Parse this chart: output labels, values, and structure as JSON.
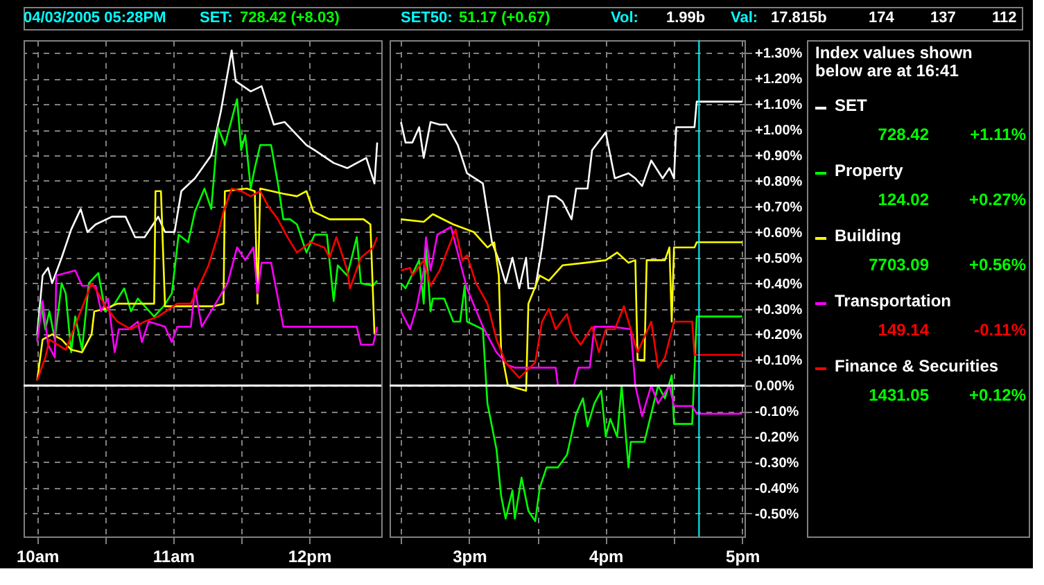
{
  "chart_data": [
    {
      "type": "line",
      "xlim": [
        9.9,
        12.53
      ],
      "ylim": [
        -0.59,
        1.35
      ],
      "xticks": [
        {
          "value": 10,
          "label": "10am"
        },
        {
          "value": 10.5,
          "label": null
        },
        {
          "value": 11,
          "label": "11am"
        },
        {
          "value": 11.5,
          "label": null
        },
        {
          "value": 12,
          "label": "12pm"
        }
      ],
      "yticks": [
        {
          "value": -0.5,
          "label": null
        },
        {
          "value": -0.4,
          "label": null
        },
        {
          "value": -0.3,
          "label": null
        },
        {
          "value": -0.2,
          "label": null
        },
        {
          "value": -0.1,
          "label": null
        },
        {
          "value": 0,
          "label": null
        },
        {
          "value": 0.1,
          "label": null
        },
        {
          "value": 0.2,
          "label": null
        },
        {
          "value": 0.3,
          "label": null
        },
        {
          "value": 0.4,
          "label": null
        },
        {
          "value": 0.5,
          "label": null
        },
        {
          "value": 0.6,
          "label": null
        },
        {
          "value": 0.7,
          "label": null
        },
        {
          "value": 0.8,
          "label": null
        },
        {
          "value": 0.9,
          "label": null
        },
        {
          "value": 1.0,
          "label": null
        },
        {
          "value": 1.1,
          "label": null
        },
        {
          "value": 1.2,
          "label": null
        },
        {
          "value": 1.3,
          "label": null
        }
      ],
      "tick_labels": "x",
      "grid": true,
      "line_style": "solid",
      "marker": "none",
      "ref_lines": [
        {
          "axis": "y",
          "value": 0,
          "color": "#ffffff"
        }
      ],
      "annotations": [
        "04/03/2005 05:28PM",
        "SET:",
        "728.42 (+8.03)",
        "SET50:",
        "51.17 (+0.67)",
        "Vol:",
        "1.99b",
        "Val:",
        "17.815b",
        "174",
        "137",
        "112"
      ],
      "series": [
        {
          "color": "#ffffff",
          "x": [
            10.0,
            10.04,
            10.08,
            10.11,
            10.18,
            10.25,
            10.32,
            10.37,
            10.43,
            10.55,
            10.65,
            10.72,
            10.79,
            10.89,
            10.94,
            11.01,
            11.06,
            11.16,
            11.28,
            11.35,
            11.43,
            11.46,
            11.57,
            11.65,
            11.74,
            11.82,
            11.98,
            12.04,
            12.18,
            12.28,
            12.42,
            12.48,
            12.5
          ],
          "values": [
            0.2,
            0.43,
            0.46,
            0.4,
            0.5,
            0.61,
            0.69,
            0.6,
            0.63,
            0.66,
            0.66,
            0.58,
            0.58,
            0.66,
            0.6,
            0.6,
            0.76,
            0.81,
            0.9,
            1.07,
            1.31,
            1.19,
            1.15,
            1.17,
            1.02,
            1.03,
            0.94,
            0.92,
            0.87,
            0.85,
            0.89,
            0.79,
            0.95
          ]
        },
        {
          "color": "#00ff00",
          "x": [
            10.0,
            10.03,
            10.06,
            10.09,
            10.13,
            10.18,
            10.21,
            10.25,
            10.28,
            10.33,
            10.38,
            10.45,
            10.5,
            10.57,
            10.64,
            10.69,
            10.74,
            10.86,
            10.93,
            10.99,
            11.04,
            11.11,
            11.16,
            11.23,
            11.28,
            11.33,
            11.38,
            11.47,
            11.5,
            11.53,
            11.57,
            11.6,
            11.64,
            11.72,
            11.77,
            11.81,
            11.86,
            11.91,
            11.98,
            12.04,
            12.13,
            12.18,
            12.21,
            12.28,
            12.35,
            12.38,
            12.47,
            12.5
          ],
          "values": [
            0.18,
            0.32,
            0.22,
            0.29,
            0.18,
            0.4,
            0.36,
            0.13,
            0.27,
            0.14,
            0.4,
            0.44,
            0.29,
            0.32,
            0.38,
            0.29,
            0.34,
            0.27,
            0.31,
            0.36,
            0.59,
            0.56,
            0.68,
            0.77,
            0.69,
            1.01,
            0.94,
            1.12,
            0.92,
            0.98,
            0.77,
            0.85,
            0.94,
            0.94,
            0.79,
            0.65,
            0.65,
            0.63,
            0.52,
            0.59,
            0.59,
            0.33,
            0.47,
            0.43,
            0.58,
            0.4,
            0.39,
            0.41
          ]
        },
        {
          "color": "#ffff00",
          "x": [
            10.0,
            10.04,
            10.11,
            10.18,
            10.25,
            10.33,
            10.4,
            10.42,
            10.5,
            10.59,
            10.79,
            10.86,
            10.87,
            10.91,
            10.94,
            11.13,
            11.3,
            11.37,
            11.38,
            11.54,
            11.6,
            11.62,
            11.64,
            11.81,
            11.91,
            11.98,
            12.03,
            12.15,
            12.4,
            12.45,
            12.48
          ],
          "values": [
            0.02,
            0.18,
            0.2,
            0.18,
            0.14,
            0.13,
            0.2,
            0.29,
            0.3,
            0.32,
            0.32,
            0.32,
            0.76,
            0.76,
            0.31,
            0.31,
            0.31,
            0.32,
            0.76,
            0.77,
            0.76,
            0.32,
            0.77,
            0.75,
            0.74,
            0.76,
            0.68,
            0.65,
            0.65,
            0.63,
            0.2
          ]
        },
        {
          "color": "#ff00ff",
          "x": [
            10.0,
            10.04,
            10.08,
            10.13,
            10.14,
            10.28,
            10.33,
            10.43,
            10.47,
            10.52,
            10.57,
            10.6,
            10.67,
            10.74,
            10.77,
            10.82,
            10.94,
            10.99,
            11.03,
            11.13,
            11.16,
            11.21,
            11.3,
            11.4,
            11.47,
            11.53,
            11.59,
            11.62,
            11.65,
            11.72,
            11.81,
            12.35,
            12.38,
            12.47,
            12.5
          ],
          "values": [
            0.17,
            0.33,
            0.16,
            0.11,
            0.43,
            0.45,
            0.39,
            0.39,
            0.29,
            0.34,
            0.13,
            0.22,
            0.22,
            0.25,
            0.17,
            0.25,
            0.23,
            0.17,
            0.23,
            0.23,
            0.38,
            0.23,
            0.31,
            0.4,
            0.54,
            0.49,
            0.54,
            0.36,
            0.48,
            0.48,
            0.23,
            0.23,
            0.16,
            0.16,
            0.23
          ]
        },
        {
          "color": "#ff0000",
          "x": [
            10.0,
            10.06,
            10.09,
            10.21,
            10.32,
            10.4,
            10.45,
            10.5,
            10.59,
            10.69,
            10.79,
            10.89,
            11.03,
            11.13,
            11.2,
            11.26,
            11.33,
            11.37,
            11.43,
            11.5,
            11.57,
            11.64,
            11.7,
            11.77,
            11.84,
            11.91,
            12.01,
            12.11,
            12.15,
            12.2,
            12.28,
            12.3,
            12.38,
            12.47,
            12.5
          ],
          "values": [
            0.02,
            0.11,
            0.18,
            0.14,
            0.29,
            0.4,
            0.36,
            0.31,
            0.25,
            0.22,
            0.25,
            0.27,
            0.32,
            0.32,
            0.4,
            0.47,
            0.59,
            0.68,
            0.77,
            0.76,
            0.74,
            0.76,
            0.7,
            0.65,
            0.58,
            0.52,
            0.56,
            0.54,
            0.5,
            0.58,
            0.45,
            0.38,
            0.5,
            0.54,
            0.58
          ]
        }
      ]
    },
    {
      "type": "line",
      "xlim": [
        "2005-03-04T14:25",
        "2005-03-04T17:01"
      ],
      "ylim": [
        -0.59,
        1.35
      ],
      "xticks": [
        {
          "value": "2005-03-04T14:30",
          "label": null
        },
        {
          "value": "2005-03-04T15:00",
          "label": "3pm"
        },
        {
          "value": "2005-03-04T15:30",
          "label": null
        },
        {
          "value": "2005-03-04T16:00",
          "label": "4pm"
        },
        {
          "value": "2005-03-04T16:30",
          "label": null
        },
        {
          "value": "2005-03-04T17:00",
          "label": "5pm"
        }
      ],
      "yticks": [
        {
          "value": -0.5,
          "label": "-0.50%"
        },
        {
          "value": -0.4,
          "label": "-0.40%"
        },
        {
          "value": -0.3,
          "label": "-0.30%"
        },
        {
          "value": -0.2,
          "label": "-0.20%"
        },
        {
          "value": -0.1,
          "label": "-0.10%"
        },
        {
          "value": 0,
          "label": "0.00%"
        },
        {
          "value": 0.1,
          "label": "+0.10%"
        },
        {
          "value": 0.2,
          "label": "+0.20%"
        },
        {
          "value": 0.3,
          "label": "+0.30%"
        },
        {
          "value": 0.4,
          "label": "+0.40%"
        },
        {
          "value": 0.5,
          "label": "+0.50%"
        },
        {
          "value": 0.6,
          "label": "+0.60%"
        },
        {
          "value": 0.7,
          "label": "+0.70%"
        },
        {
          "value": 0.8,
          "label": "+0.80%"
        },
        {
          "value": 0.9,
          "label": "+0.90%"
        },
        {
          "value": 1.0,
          "label": "+1.00%"
        },
        {
          "value": 1.1,
          "label": "+1.10%"
        },
        {
          "value": 1.2,
          "label": "+1.20%"
        },
        {
          "value": 1.3,
          "label": "+1.30%"
        }
      ],
      "grid": true,
      "line_style": "solid",
      "marker": "none",
      "legend": "right",
      "ref_lines": [
        {
          "axis": "y",
          "value": 0,
          "color": "#ffffff"
        },
        {
          "axis": "x",
          "value": "2005-03-04T16:41",
          "color": "#00ffff"
        }
      ],
      "annotations": [
        "Index values shown below are at 16:41",
        "728.42",
        "+1.11%",
        "124.02",
        "+0.27%",
        "7703.09",
        "+0.56%",
        "149.14",
        "-0.11%",
        "1431.05",
        "+0.12%"
      ],
      "series": [
        {
          "name": "SET",
          "color": "#ffffff",
          "x": [
            "2005-03-04T14:30",
            "2005-03-04T14:32",
            "2005-03-04T14:35",
            "2005-03-04T14:38",
            "2005-03-04T14:40",
            "2005-03-04T14:43",
            "2005-03-04T14:47",
            "2005-03-04T14:50",
            "2005-03-04T14:55",
            "2005-03-04T14:59",
            "2005-03-04T15:06",
            "2005-03-04T15:10",
            "2005-03-04T15:13",
            "2005-03-04T15:16",
            "2005-03-04T15:19",
            "2005-03-04T15:22",
            "2005-03-04T15:25",
            "2005-03-04T15:26",
            "2005-03-04T15:29",
            "2005-03-04T15:32",
            "2005-03-04T15:35",
            "2005-03-04T15:38",
            "2005-03-04T15:41",
            "2005-03-04T15:45",
            "2005-03-04T15:47",
            "2005-03-04T15:52",
            "2005-03-04T15:54",
            "2005-03-04T16:00",
            "2005-03-04T16:04",
            "2005-03-04T16:10",
            "2005-03-04T16:13",
            "2005-03-04T16:16",
            "2005-03-04T16:20",
            "2005-03-04T16:25",
            "2005-03-04T16:28",
            "2005-03-04T16:30",
            "2005-03-04T16:31",
            "2005-03-04T16:39",
            "2005-03-04T16:40",
            "2005-03-04T17:00"
          ],
          "values": [
            1.03,
            0.95,
            0.95,
            1.01,
            0.89,
            1.03,
            1.02,
            1.02,
            0.94,
            0.83,
            0.79,
            0.56,
            0.49,
            0.4,
            0.5,
            0.38,
            0.5,
            0.38,
            0.38,
            0.54,
            0.74,
            0.74,
            0.72,
            0.65,
            0.77,
            0.77,
            0.92,
            0.99,
            0.81,
            0.83,
            0.81,
            0.78,
            0.88,
            0.81,
            0.85,
            0.81,
            1.01,
            1.01,
            1.11,
            1.11
          ]
        },
        {
          "name": "Property",
          "color": "#00ff00",
          "x": [
            "2005-03-04T14:30",
            "2005-03-04T14:32",
            "2005-03-04T14:38",
            "2005-03-04T14:40",
            "2005-03-04T14:41",
            "2005-03-04T14:43",
            "2005-03-04T14:44",
            "2005-03-04T14:49",
            "2005-03-04T14:53",
            "2005-03-04T14:56",
            "2005-03-04T14:58",
            "2005-03-04T14:59",
            "2005-03-04T15:06",
            "2005-03-04T15:08",
            "2005-03-04T15:12",
            "2005-03-04T15:14",
            "2005-03-04T15:16",
            "2005-03-04T15:19",
            "2005-03-04T15:20",
            "2005-03-04T15:23",
            "2005-03-04T15:26",
            "2005-03-04T15:29",
            "2005-03-04T15:31",
            "2005-03-04T15:34",
            "2005-03-04T15:39",
            "2005-03-04T15:43",
            "2005-03-04T15:47",
            "2005-03-04T15:50",
            "2005-03-04T15:52",
            "2005-03-04T15:55",
            "2005-03-04T15:58",
            "2005-03-04T16:00",
            "2005-03-04T16:02",
            "2005-03-04T16:05",
            "2005-03-04T16:07",
            "2005-03-04T16:10",
            "2005-03-04T16:11",
            "2005-03-04T16:17",
            "2005-03-04T16:20",
            "2005-03-04T16:23",
            "2005-03-04T16:26",
            "2005-03-04T16:29",
            "2005-03-04T16:30",
            "2005-03-04T16:38",
            "2005-03-04T16:40",
            "2005-03-04T17:00"
          ],
          "values": [
            0.4,
            0.38,
            0.49,
            0.32,
            0.54,
            0.29,
            0.34,
            0.34,
            0.25,
            0.25,
            0.39,
            0.25,
            0.22,
            -0.07,
            -0.25,
            -0.43,
            -0.52,
            -0.41,
            -0.52,
            -0.36,
            -0.49,
            -0.53,
            -0.4,
            -0.32,
            -0.32,
            -0.27,
            -0.11,
            -0.05,
            -0.16,
            -0.07,
            -0.02,
            -0.2,
            -0.13,
            -0.2,
            0.0,
            -0.32,
            -0.22,
            -0.22,
            -0.11,
            0.0,
            -0.05,
            0.04,
            -0.15,
            -0.15,
            0.27,
            0.27
          ]
        },
        {
          "name": "Building",
          "color": "#ffff00",
          "x": [
            "2005-03-04T14:30",
            "2005-03-04T14:40",
            "2005-03-04T14:44",
            "2005-03-04T14:53",
            "2005-03-04T15:02",
            "2005-03-04T15:08",
            "2005-03-04T15:11",
            "2005-03-04T15:13",
            "2005-03-04T15:14",
            "2005-03-04T15:17",
            "2005-03-04T15:25",
            "2005-03-04T15:26",
            "2005-03-04T15:31",
            "2005-03-04T15:35",
            "2005-03-04T15:41",
            "2005-03-04T15:51",
            "2005-03-04T16:00",
            "2005-03-04T16:05",
            "2005-03-04T16:10",
            "2005-03-04T16:13",
            "2005-03-04T16:14",
            "2005-03-04T16:17",
            "2005-03-04T16:18",
            "2005-03-04T16:26",
            "2005-03-04T16:28",
            "2005-03-04T16:29",
            "2005-03-04T16:30",
            "2005-03-04T16:39",
            "2005-03-04T16:40",
            "2005-03-04T17:00"
          ],
          "values": [
            0.65,
            0.64,
            0.67,
            0.63,
            0.6,
            0.54,
            0.56,
            0.43,
            0.14,
            0.0,
            -0.02,
            0.32,
            0.43,
            0.41,
            0.47,
            0.48,
            0.49,
            0.52,
            0.48,
            0.49,
            0.1,
            0.1,
            0.49,
            0.49,
            0.54,
            0.25,
            0.54,
            0.54,
            0.56,
            0.56
          ]
        },
        {
          "name": "Transportation",
          "color": "#ff00ff",
          "x": [
            "2005-03-04T14:30",
            "2005-03-04T14:34",
            "2005-03-04T14:37",
            "2005-03-04T14:40",
            "2005-03-04T14:41",
            "2005-03-04T14:43",
            "2005-03-04T14:46",
            "2005-03-04T14:52",
            "2005-03-04T14:59",
            "2005-03-04T15:06",
            "2005-03-04T15:12",
            "2005-03-04T15:17",
            "2005-03-04T15:20",
            "2005-03-04T15:38",
            "2005-03-04T15:39",
            "2005-03-04T15:46",
            "2005-03-04T15:48",
            "2005-03-04T15:53",
            "2005-03-04T15:55",
            "2005-03-04T16:03",
            "2005-03-04T16:11",
            "2005-03-04T16:13",
            "2005-03-04T16:16",
            "2005-03-04T16:20",
            "2005-03-04T16:23",
            "2005-03-04T16:28",
            "2005-03-04T16:30",
            "2005-03-04T16:38",
            "2005-03-04T16:40",
            "2005-03-04T17:00"
          ],
          "values": [
            0.29,
            0.22,
            0.31,
            0.45,
            0.58,
            0.45,
            0.59,
            0.62,
            0.38,
            0.23,
            0.13,
            0.08,
            0.07,
            0.07,
            0.0,
            0.0,
            0.07,
            0.07,
            0.23,
            0.23,
            0.22,
            0.0,
            -0.12,
            0.0,
            -0.07,
            0.0,
            -0.08,
            -0.08,
            -0.11,
            -0.11
          ]
        },
        {
          "name": "Finance & Securities",
          "color": "#ff0000",
          "x": [
            "2005-03-04T14:30",
            "2005-03-04T14:34",
            "2005-03-04T14:35",
            "2005-03-04T14:40",
            "2005-03-04T14:43",
            "2005-03-04T14:47",
            "2005-03-04T14:50",
            "2005-03-04T14:54",
            "2005-03-04T14:57",
            "2005-03-04T14:59",
            "2005-03-04T15:03",
            "2005-03-04T15:08",
            "2005-03-04T15:12",
            "2005-03-04T15:16",
            "2005-03-04T15:22",
            "2005-03-04T15:29",
            "2005-03-04T15:32",
            "2005-03-04T15:35",
            "2005-03-04T15:38",
            "2005-03-04T15:43",
            "2005-03-04T15:45",
            "2005-03-04T15:49",
            "2005-03-04T15:54",
            "2005-03-04T15:57",
            "2005-03-04T16:00",
            "2005-03-04T16:04",
            "2005-03-04T16:08",
            "2005-03-04T16:11",
            "2005-03-04T16:14",
            "2005-03-04T16:20",
            "2005-03-04T16:23",
            "2005-03-04T16:26",
            "2005-03-04T16:30",
            "2005-03-04T16:38",
            "2005-03-04T16:39",
            "2005-03-04T17:00"
          ],
          "values": [
            0.45,
            0.46,
            0.43,
            0.49,
            0.39,
            0.45,
            0.52,
            0.61,
            0.49,
            0.51,
            0.4,
            0.32,
            0.18,
            0.09,
            0.03,
            0.09,
            0.25,
            0.3,
            0.22,
            0.28,
            0.21,
            0.16,
            0.23,
            0.13,
            0.22,
            0.22,
            0.31,
            0.22,
            0.13,
            0.25,
            0.07,
            0.11,
            0.25,
            0.25,
            0.12,
            0.12
          ]
        }
      ]
    }
  ]
}
